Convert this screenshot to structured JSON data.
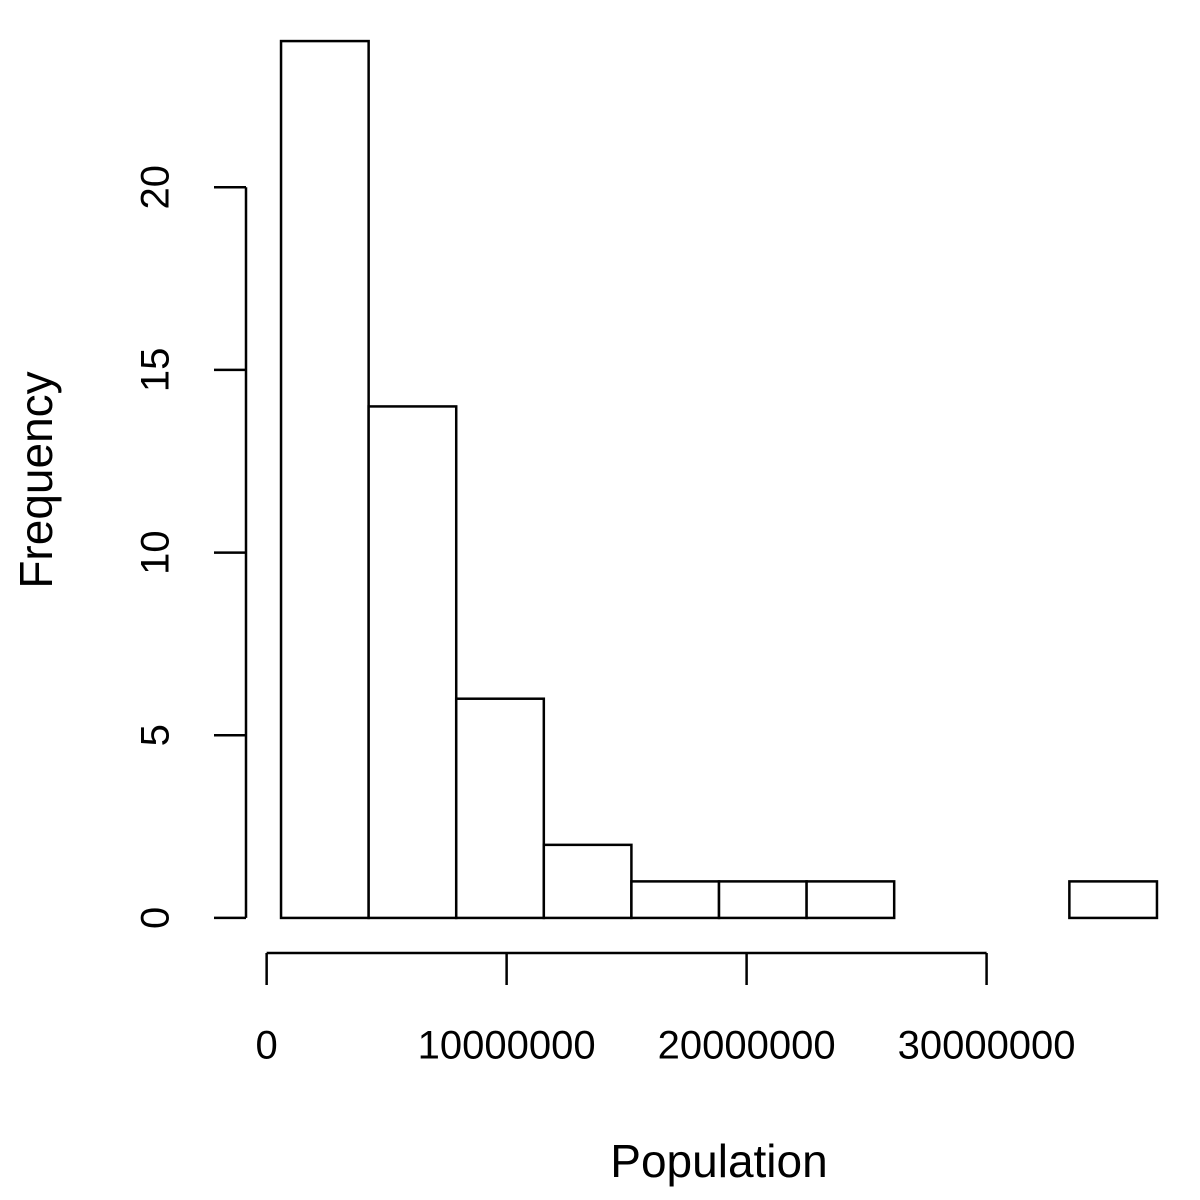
{
  "chart_data": {
    "type": "histogram",
    "x_label": "Population",
    "y_label": "Frequency",
    "bins": [
      600000,
      4250000,
      7900000,
      11550000,
      15200000,
      18850000,
      22500000,
      26150000,
      29800000,
      33450000,
      37100000
    ],
    "values": [
      24,
      14,
      6,
      2,
      1,
      1,
      1,
      0,
      0,
      1
    ],
    "color": "#ffffff",
    "edge_color": "#000000",
    "xlim": [
      -860000,
      38560000
    ],
    "xticks": [
      0,
      10000000,
      20000000,
      30000000
    ],
    "ylim": [
      -0.96,
      24.96
    ],
    "yticks": [
      0,
      5,
      10,
      15,
      20
    ]
  }
}
